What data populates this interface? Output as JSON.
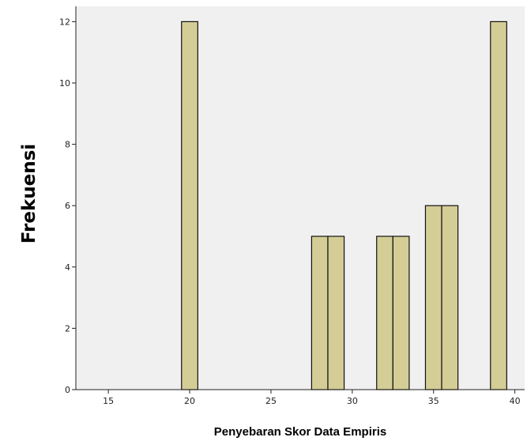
{
  "chart_data": {
    "type": "bar",
    "title": "",
    "xlabel": "Penyebaran Skor Data Empiris",
    "ylabel": "Frekuensi",
    "xlim": [
      13,
      40.6
    ],
    "ylim": [
      0,
      12.5
    ],
    "x_ticks": [
      15,
      20,
      25,
      30,
      35,
      40
    ],
    "y_ticks": [
      0,
      2,
      4,
      6,
      8,
      10,
      12
    ],
    "grid": false,
    "legend": "none",
    "bin_width": 1,
    "bars": [
      {
        "x0": 19.5,
        "x1": 20.5,
        "value": 12
      },
      {
        "x0": 27.5,
        "x1": 28.5,
        "value": 5
      },
      {
        "x0": 28.5,
        "x1": 29.5,
        "value": 5
      },
      {
        "x0": 31.5,
        "x1": 32.5,
        "value": 5
      },
      {
        "x0": 32.5,
        "x1": 33.5,
        "value": 5
      },
      {
        "x0": 34.5,
        "x1": 35.5,
        "value": 6
      },
      {
        "x0": 35.5,
        "x1": 36.5,
        "value": 6
      },
      {
        "x0": 38.5,
        "x1": 39.5,
        "value": 12
      }
    ],
    "colors": {
      "background": "#ffffff",
      "plot_area": "#f0f0f0",
      "bar_fill": "#d4cd96",
      "bar_stroke": "#111111",
      "axis": "#222222"
    }
  }
}
